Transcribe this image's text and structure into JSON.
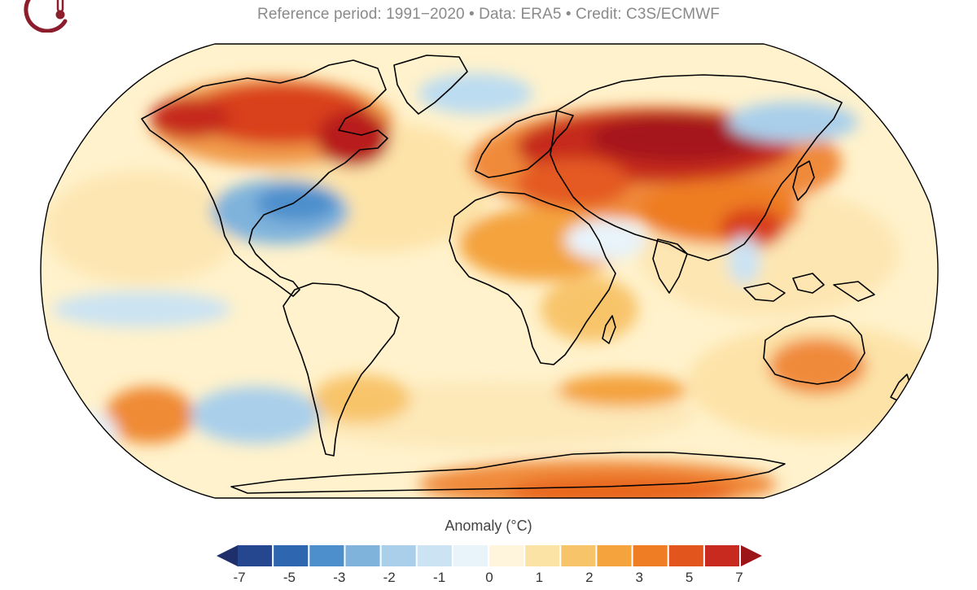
{
  "header": {
    "subtitle": "Reference period: 1991−2020 • Data: ERA5 • Credit: C3S/ECMWF",
    "logo_icon": "thermometer-icon",
    "logo_color": "#8c1d2c"
  },
  "map": {
    "projection": "robinson",
    "ocean_base_color": "#fff2cc",
    "coastline_color": "#000000"
  },
  "legend": {
    "title": "Anomaly (°C)",
    "tick_labels": [
      "-7",
      "-5",
      "-3",
      "-2",
      "-1",
      "0",
      "1",
      "2",
      "3",
      "5",
      "7"
    ],
    "tick_values": [
      -7,
      -5,
      -3,
      -2,
      -1,
      0,
      1,
      2,
      3,
      5,
      7
    ],
    "colors": [
      "#1f2f6b",
      "#24478f",
      "#2e67b0",
      "#4d8fcc",
      "#7fb3dc",
      "#a9cfeb",
      "#cbe3f3",
      "#e8f3fa",
      "#fef5dc",
      "#fbe3a6",
      "#f8c46a",
      "#f4a33d",
      "#ee7d24",
      "#e2561d",
      "#c92a1f",
      "#9e1519"
    ]
  }
}
